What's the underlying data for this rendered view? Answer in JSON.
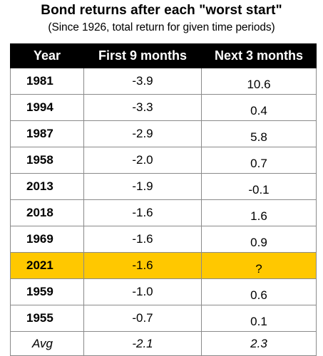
{
  "title": "Bond returns after each \"worst start\"",
  "subtitle": "(Since 1926, total return for given time periods)",
  "highlight_color": "#ffc800",
  "header_color": "#000000",
  "chart_data": {
    "type": "table",
    "columns": [
      "Year",
      "First 9 months",
      "Next 3 months"
    ],
    "rows": [
      {
        "year": "1981",
        "first": "-3.9",
        "next": "10.6"
      },
      {
        "year": "1994",
        "first": "-3.3",
        "next": "0.4"
      },
      {
        "year": "1987",
        "first": "-2.9",
        "next": "5.8"
      },
      {
        "year": "1958",
        "first": "-2.0",
        "next": "0.7"
      },
      {
        "year": "2013",
        "first": "-1.9",
        "next": "-0.1"
      },
      {
        "year": "2018",
        "first": "-1.6",
        "next": "1.6"
      },
      {
        "year": "1969",
        "first": "-1.6",
        "next": "0.9"
      },
      {
        "year": "2021",
        "first": "-1.6",
        "next": "?",
        "highlight": true
      },
      {
        "year": "1959",
        "first": "-1.0",
        "next": "0.6"
      },
      {
        "year": "1955",
        "first": "-0.7",
        "next": "0.1"
      }
    ],
    "average": {
      "label": "Avg",
      "first": "-2.1",
      "next": "2.3"
    }
  }
}
